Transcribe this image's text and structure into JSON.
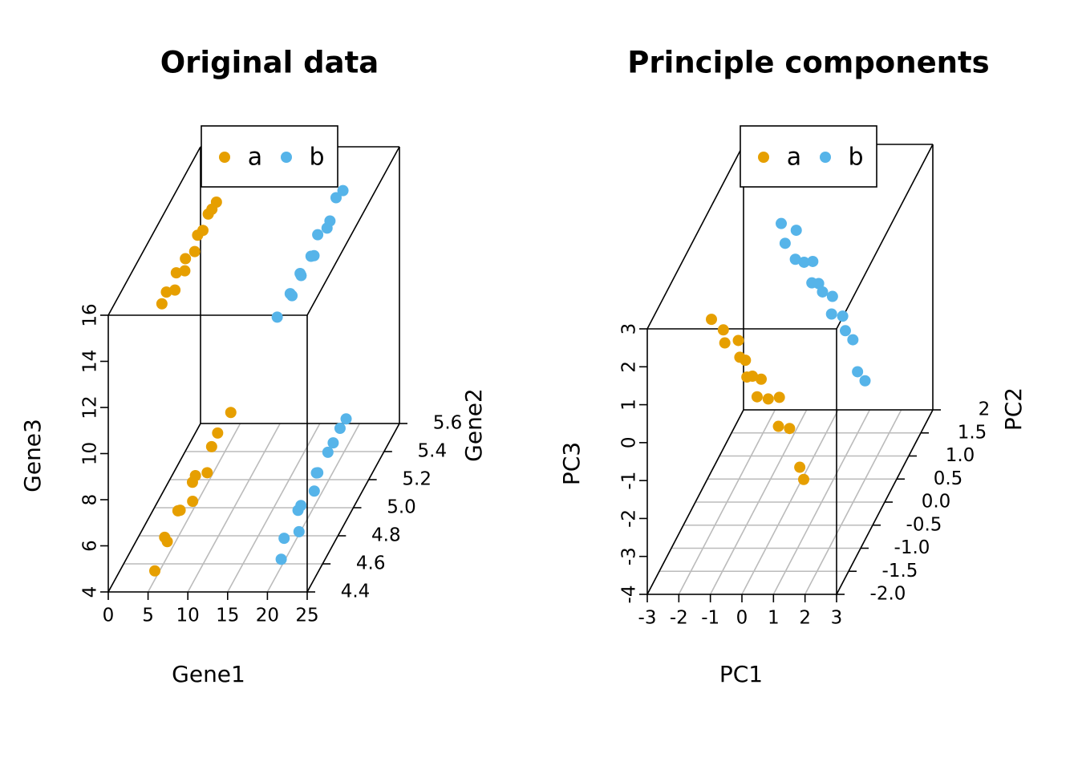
{
  "chart_data": [
    {
      "type": "scatter3d",
      "title": "Original data",
      "xlabel": "Gene1",
      "ylabel": "Gene2",
      "zlabel": "Gene3",
      "legend": "top",
      "xlim": [
        0,
        25
      ],
      "xticks": [
        0,
        5,
        10,
        15,
        20,
        25
      ],
      "ylim": [
        4.4,
        5.6
      ],
      "yticks": [
        4.4,
        4.6,
        4.8,
        {
          "value": 5,
          "label": "5.0"
        },
        5.2,
        5.4,
        5.6
      ],
      "zlim": [
        4,
        16
      ],
      "zticks": [
        4,
        6,
        8,
        10,
        12,
        14,
        16
      ],
      "series": [
        {
          "name": "a",
          "color": "#E69F00",
          "x": [
            4.4,
            4.9,
            3.8,
            4.6,
            4.2,
            5.0,
            4.3,
            3.9,
            4.7,
            4.1,
            3.6,
            4.0,
            5.0,
            4.6,
            4.9,
            4.2,
            4.5,
            3.9,
            4.1,
            3.5,
            3.2,
            2.9,
            2.4,
            2.0
          ],
          "y": [
            4.55,
            4.66,
            4.74,
            4.83,
            4.9,
            4.98,
            5.05,
            5.13,
            5.2,
            5.32,
            5.45,
            5.58,
            4.58,
            4.68,
            4.76,
            4.85,
            4.93,
            5.0,
            5.1,
            5.2,
            5.3,
            5.4,
            5.5,
            5.6
          ],
          "z": [
            4.0,
            4.6,
            4.3,
            4.9,
            4.5,
            4.4,
            4.8,
            4.6,
            4.3,
            4.7,
            4.5,
            4.6,
            15.4,
            15.3,
            14.9,
            15.1,
            14.7,
            14.8,
            14.5,
            14.6,
            14.2,
            14.3,
            13.9,
            13.6
          ]
        },
        {
          "name": "b",
          "color": "#56B4E9",
          "x": [
            19.8,
            19.2,
            20.3,
            19.5,
            18.9,
            19.9,
            19.4,
            18.6,
            19.1,
            18.8,
            18.5,
            18.3,
            19.3,
            20.0,
            19.0,
            19.6,
            18.7,
            19.2,
            18.9,
            18.4,
            18.8,
            18.2,
            18.0,
            17.9
          ],
          "y": [
            4.6,
            4.7,
            4.78,
            4.85,
            4.95,
            5.02,
            5.1,
            5.2,
            5.28,
            5.38,
            5.5,
            5.6,
            4.6,
            4.72,
            4.8,
            4.88,
            4.96,
            5.05,
            5.12,
            5.22,
            5.3,
            5.4,
            5.5,
            5.6
          ],
          "z": [
            4.2,
            4.5,
            4.3,
            4.8,
            4.4,
            4.6,
            4.9,
            4.3,
            4.7,
            4.5,
            4.4,
            4.2,
            14.7,
            14.9,
            14.5,
            14.8,
            14.4,
            14.6,
            14.2,
            14.5,
            14.3,
            14.0,
            14.4,
            14.1
          ]
        }
      ]
    },
    {
      "type": "scatter3d",
      "title": "Principle components",
      "xlabel": "PC1",
      "ylabel": "PC2",
      "zlabel": "PC3",
      "legend": "top",
      "xlim": [
        -3,
        3
      ],
      "xticks": [
        -3,
        -2,
        -1,
        0,
        1,
        2,
        3
      ],
      "ylim": [
        -2,
        2
      ],
      "yticks": [
        {
          "value": -2,
          "label": "-2.0"
        },
        -1.5,
        {
          "value": -1,
          "label": "-1.0"
        },
        -0.5,
        {
          "value": 0,
          "label": "0.0"
        },
        0.5,
        {
          "value": 1,
          "label": "1.0"
        },
        1.5,
        2
      ],
      "zlim": [
        -4,
        3
      ],
      "zticks": [
        -4,
        -3,
        -2,
        -1,
        0,
        1,
        2,
        3
      ],
      "series": [
        {
          "name": "a",
          "color": "#E69F00",
          "x": [
            -1.5,
            -1.2,
            -1.0,
            -0.8,
            -0.6,
            -0.5,
            -0.3,
            -0.2,
            0,
            0.1,
            0.3,
            0.5,
            0.7,
            0.9,
            1.3,
            1.5
          ],
          "y": [
            -1.3,
            -1.2,
            -1.4,
            -1.1,
            -1.3,
            -1.2,
            -1.4,
            -1.3,
            -1.2,
            -1.5,
            -1.3,
            -1.1,
            -1.4,
            -1.2,
            -1.3,
            -1.4
          ],
          "z": [
            2.4,
            2.0,
            1.9,
            1.6,
            1.4,
            1.2,
            1.0,
            0.9,
            0.7,
            0.6,
            0.3,
            0.1,
            -0.3,
            -0.6,
            -1.5,
            -1.7
          ]
        },
        {
          "name": "b",
          "color": "#56B4E9",
          "x": [
            -1.5,
            -1.3,
            -1.1,
            -0.9,
            -0.7,
            -0.5,
            -0.3,
            -0.2,
            0,
            0.2,
            0.4,
            0.6,
            0.8,
            1.0,
            1.3,
            1.5
          ],
          "y": [
            1.6,
            1.5,
            1.7,
            1.4,
            1.5,
            1.6,
            1.3,
            1.45,
            1.35,
            1.5,
            1.2,
            1.4,
            1.25,
            1.3,
            1.1,
            1.15
          ],
          "z": [
            1.4,
            1.0,
            1.1,
            0.7,
            0.5,
            0.4,
            0.2,
            0.0,
            -0.1,
            -0.4,
            -0.5,
            -0.8,
            -1.0,
            -1.3,
            -1.9,
            -2.2
          ]
        }
      ]
    }
  ]
}
